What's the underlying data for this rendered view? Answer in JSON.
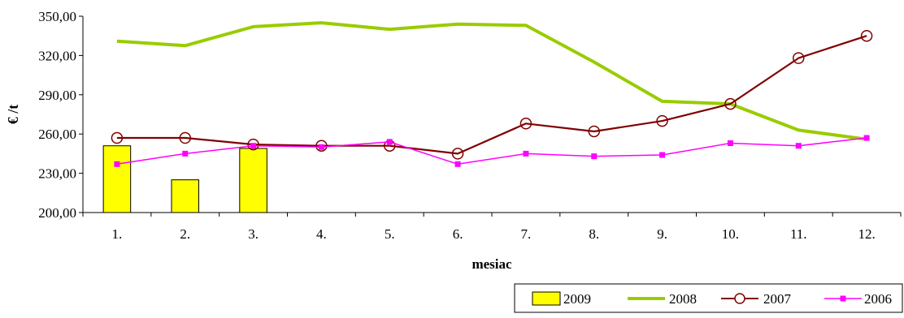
{
  "chart_data": {
    "type": "bar+line",
    "title": "",
    "xlabel": "mesiac",
    "ylabel": "€ /t",
    "ylim": [
      200,
      350
    ],
    "yticks": [
      200,
      230,
      260,
      290,
      320,
      350
    ],
    "ytick_labels": [
      "200,00",
      "230,00",
      "260,00",
      "290,00",
      "320,00",
      "350,00"
    ],
    "categories": [
      "1.",
      "2.",
      "3.",
      "4.",
      "5.",
      "6.",
      "7.",
      "8.",
      "9.",
      "10.",
      "11.",
      "12."
    ],
    "grid": false,
    "legend_position": "bottom-right",
    "series": [
      {
        "name": "2009",
        "type": "bar",
        "color": "#ffff00",
        "values": [
          251,
          225,
          249,
          null,
          null,
          null,
          null,
          null,
          null,
          null,
          null,
          null
        ]
      },
      {
        "name": "2008",
        "type": "line",
        "color": "#99cc00",
        "marker": "none",
        "values": [
          331,
          327.5,
          342,
          345,
          340,
          344,
          343,
          315,
          285,
          283,
          263,
          256
        ]
      },
      {
        "name": "2007",
        "type": "line",
        "color": "#800000",
        "marker": "circle-open",
        "values": [
          257,
          257,
          252,
          251,
          251,
          245,
          268,
          262,
          270,
          283,
          318,
          335
        ]
      },
      {
        "name": "2006",
        "type": "line",
        "color": "#ff00ff",
        "marker": "square",
        "values": [
          237,
          245,
          251,
          250,
          254,
          237,
          245,
          243,
          244,
          253,
          251,
          257
        ]
      }
    ]
  }
}
